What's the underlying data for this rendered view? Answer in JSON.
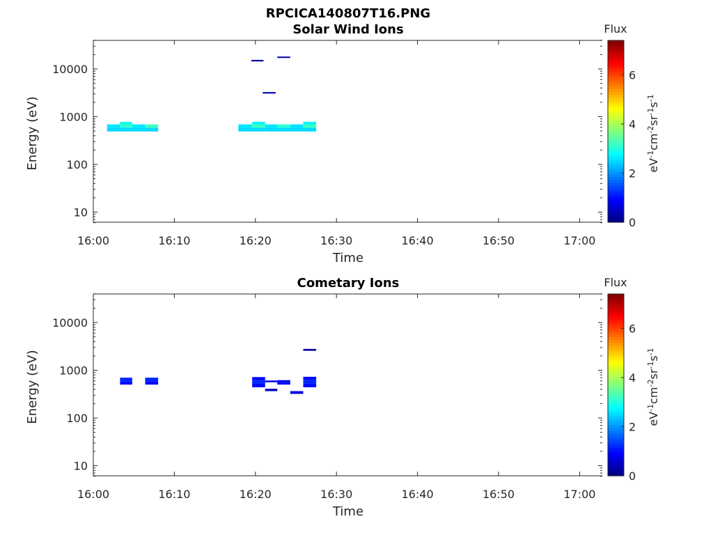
{
  "figure_title": "RPCICA140807T16.PNG",
  "chart_data": [
    {
      "type": "heatmap",
      "title": "Solar Wind Ions",
      "xlabel": "Time",
      "ylabel": "Energy (eV)",
      "x_ticks": [
        "16:00",
        "16:10",
        "16:20",
        "16:30",
        "16:40",
        "16:50",
        "17:00"
      ],
      "xlim_minutes": [
        0,
        63
      ],
      "y_scale": "log",
      "ylim": [
        6,
        45000
      ],
      "y_ticks": [
        10,
        100,
        1000,
        10000
      ],
      "y_tick_labels": [
        "10",
        "100",
        "1000",
        "10000"
      ],
      "colorbar": {
        "title": "Flux",
        "label": "eV-1cm-2sr-1s-1",
        "range": [
          0,
          7.4
        ],
        "ticks": [
          "0",
          "2",
          "4",
          "6"
        ],
        "colormap": "jet"
      },
      "cells": [
        {
          "t0": 1.7,
          "t1": 3.3,
          "e0": 490,
          "e1": 585,
          "flux": 2.5
        },
        {
          "t0": 1.7,
          "t1": 3.3,
          "e0": 585,
          "e1": 690,
          "flux": 2.6
        },
        {
          "t0": 3.3,
          "t1": 4.8,
          "e0": 490,
          "e1": 585,
          "flux": 2.5
        },
        {
          "t0": 3.3,
          "t1": 4.8,
          "e0": 585,
          "e1": 690,
          "flux": 3.1
        },
        {
          "t0": 3.3,
          "t1": 4.8,
          "e0": 690,
          "e1": 780,
          "flux": 2.9
        },
        {
          "t0": 4.8,
          "t1": 6.4,
          "e0": 490,
          "e1": 585,
          "flux": 2.5
        },
        {
          "t0": 4.8,
          "t1": 6.4,
          "e0": 585,
          "e1": 690,
          "flux": 2.6
        },
        {
          "t0": 6.4,
          "t1": 8.0,
          "e0": 490,
          "e1": 585,
          "flux": 2.5
        },
        {
          "t0": 6.4,
          "t1": 8.0,
          "e0": 585,
          "e1": 690,
          "flux": 3.2
        },
        {
          "t0": 17.9,
          "t1": 19.6,
          "e0": 490,
          "e1": 585,
          "flux": 2.5
        },
        {
          "t0": 17.9,
          "t1": 19.6,
          "e0": 585,
          "e1": 690,
          "flux": 2.6
        },
        {
          "t0": 19.6,
          "t1": 21.2,
          "e0": 490,
          "e1": 585,
          "flux": 2.5
        },
        {
          "t0": 19.6,
          "t1": 21.2,
          "e0": 585,
          "e1": 690,
          "flux": 3.2
        },
        {
          "t0": 19.6,
          "t1": 21.2,
          "e0": 690,
          "e1": 780,
          "flux": 2.7
        },
        {
          "t0": 21.2,
          "t1": 22.7,
          "e0": 490,
          "e1": 585,
          "flux": 2.5
        },
        {
          "t0": 21.2,
          "t1": 22.7,
          "e0": 585,
          "e1": 690,
          "flux": 2.6
        },
        {
          "t0": 22.7,
          "t1": 24.3,
          "e0": 490,
          "e1": 585,
          "flux": 2.5
        },
        {
          "t0": 22.7,
          "t1": 24.3,
          "e0": 585,
          "e1": 690,
          "flux": 3.1
        },
        {
          "t0": 24.3,
          "t1": 25.9,
          "e0": 490,
          "e1": 585,
          "flux": 2.5
        },
        {
          "t0": 24.3,
          "t1": 25.9,
          "e0": 585,
          "e1": 690,
          "flux": 2.6
        },
        {
          "t0": 25.9,
          "t1": 27.5,
          "e0": 490,
          "e1": 585,
          "flux": 2.5
        },
        {
          "t0": 25.9,
          "t1": 27.5,
          "e0": 585,
          "e1": 690,
          "flux": 3.2
        },
        {
          "t0": 25.9,
          "t1": 27.5,
          "e0": 690,
          "e1": 780,
          "flux": 2.7
        },
        {
          "t0": 19.5,
          "t1": 21.0,
          "e0": 14400,
          "e1": 15500,
          "flux": 0.3
        },
        {
          "t0": 22.7,
          "t1": 24.3,
          "e0": 17000,
          "e1": 18200,
          "flux": 0.3
        },
        {
          "t0": 20.9,
          "t1": 22.5,
          "e0": 3050,
          "e1": 3280,
          "flux": 0.3
        }
      ]
    },
    {
      "type": "heatmap",
      "title": "Cometary Ions",
      "xlabel": "Time",
      "ylabel": "Energy (eV)",
      "x_ticks": [
        "16:00",
        "16:10",
        "16:20",
        "16:30",
        "16:40",
        "16:50",
        "17:00"
      ],
      "xlim_minutes": [
        0,
        63
      ],
      "y_scale": "log",
      "ylim": [
        6,
        45000
      ],
      "y_ticks": [
        10,
        100,
        1000,
        10000
      ],
      "y_tick_labels": [
        "10",
        "100",
        "1000",
        "10000"
      ],
      "colorbar": {
        "title": "Flux",
        "label": "eV-1cm-2sr-1s-1",
        "range": [
          0,
          7.4
        ],
        "ticks": [
          "0",
          "2",
          "4",
          "6"
        ],
        "colormap": "jet"
      },
      "cells": [
        {
          "t0": 3.3,
          "t1": 4.8,
          "e0": 500,
          "e1": 590,
          "flux": 1.0
        },
        {
          "t0": 3.3,
          "t1": 4.8,
          "e0": 590,
          "e1": 700,
          "flux": 1.2
        },
        {
          "t0": 6.4,
          "t1": 8.0,
          "e0": 500,
          "e1": 590,
          "flux": 1.0
        },
        {
          "t0": 6.4,
          "t1": 8.0,
          "e0": 590,
          "e1": 700,
          "flux": 1.2
        },
        {
          "t0": 19.6,
          "t1": 21.2,
          "e0": 440,
          "e1": 520,
          "flux": 1.0
        },
        {
          "t0": 19.6,
          "t1": 21.2,
          "e0": 520,
          "e1": 610,
          "flux": 1.2
        },
        {
          "t0": 19.6,
          "t1": 21.2,
          "e0": 610,
          "e1": 720,
          "flux": 1.0
        },
        {
          "t0": 21.2,
          "t1": 22.7,
          "e0": 560,
          "e1": 610,
          "flux": 0.9
        },
        {
          "t0": 21.2,
          "t1": 22.7,
          "e0": 365,
          "e1": 410,
          "flux": 0.5
        },
        {
          "t0": 22.7,
          "t1": 24.3,
          "e0": 500,
          "e1": 560,
          "flux": 1.0
        },
        {
          "t0": 22.7,
          "t1": 24.3,
          "e0": 560,
          "e1": 620,
          "flux": 0.8
        },
        {
          "t0": 24.3,
          "t1": 25.9,
          "e0": 320,
          "e1": 365,
          "flux": 0.7
        },
        {
          "t0": 25.9,
          "t1": 27.5,
          "e0": 440,
          "e1": 530,
          "flux": 1.0
        },
        {
          "t0": 25.9,
          "t1": 27.5,
          "e0": 530,
          "e1": 620,
          "flux": 1.2
        },
        {
          "t0": 25.9,
          "t1": 27.5,
          "e0": 620,
          "e1": 730,
          "flux": 1.0
        },
        {
          "t0": 25.9,
          "t1": 27.5,
          "e0": 2560,
          "e1": 2800,
          "flux": 0.3
        }
      ]
    }
  ]
}
